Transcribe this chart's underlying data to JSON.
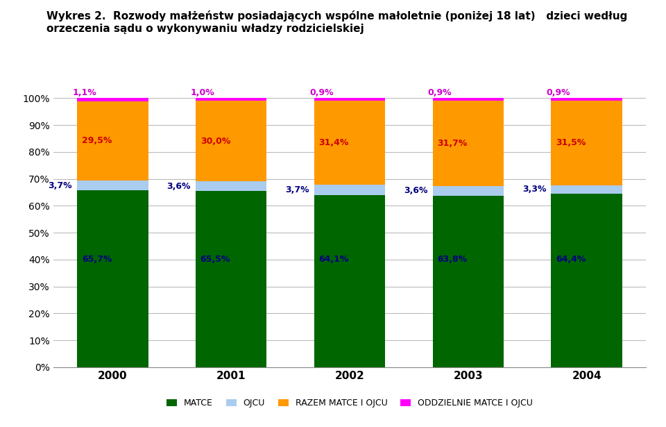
{
  "title_line1": "Wykres 2.  Rozwody małżeństw posiadających wspólne małoletnie (poniżej 18 lat)   dzieci według",
  "title_line2": "orzeczenia sądu o wykonywaniu władzy rodzicielskiej",
  "years": [
    "2000",
    "2001",
    "2002",
    "2003",
    "2004"
  ],
  "matce": [
    65.7,
    65.5,
    64.1,
    63.8,
    64.4
  ],
  "ojcu": [
    3.7,
    3.6,
    3.7,
    3.6,
    3.3
  ],
  "razem": [
    29.5,
    30.0,
    31.4,
    31.7,
    31.5
  ],
  "oddzielnie": [
    1.1,
    1.0,
    0.9,
    0.9,
    0.9
  ],
  "matce_color": "#006600",
  "ojcu_color": "#aaccee",
  "razem_color": "#ff9900",
  "oddzielnie_color": "#ff00ff",
  "matce_label": "MATCE",
  "ojcu_label": "OJCU",
  "razem_label": "RAZEM MATCE I OJCU",
  "oddzielnie_label": "ODDZIELNIE MATCE I OJCU",
  "matce_text_color": "#000080",
  "ojcu_text_color": "#000080",
  "razem_text_color": "#cc0000",
  "oddzielnie_text_color": "#cc00cc",
  "ylim": [
    0,
    100
  ],
  "ylabel_ticks": [
    0,
    10,
    20,
    30,
    40,
    50,
    60,
    70,
    80,
    90,
    100
  ],
  "background_color": "#ffffff",
  "grid_color": "#bbbbbb"
}
